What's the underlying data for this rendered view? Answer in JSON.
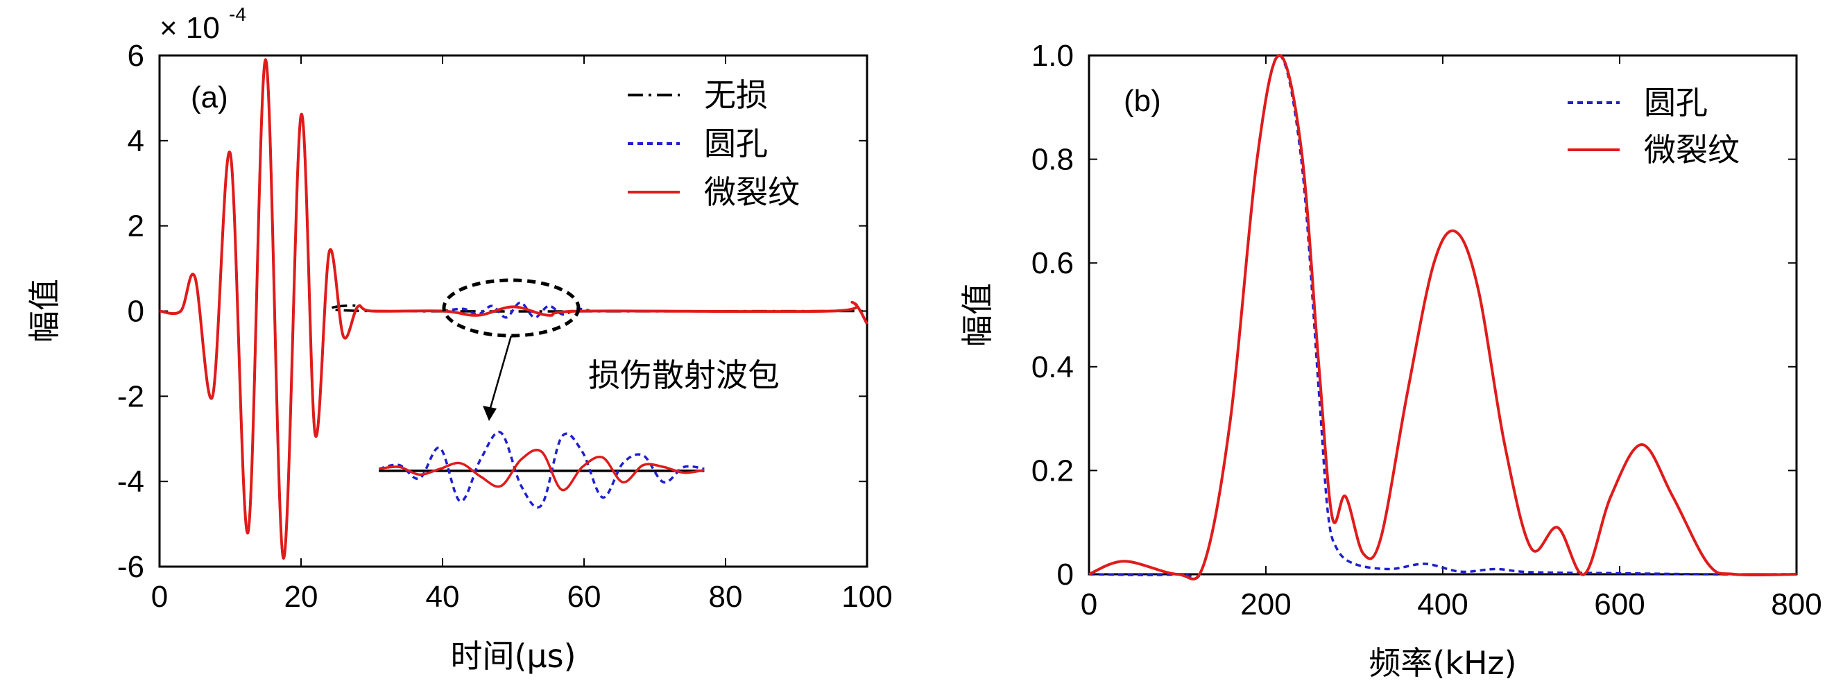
{
  "chart_data": [
    {
      "id": "a",
      "type": "line",
      "panel_label": "(a)",
      "xlabel": "时间(μs)",
      "ylabel": "幅值",
      "scale_note_base": "× 10",
      "scale_note_exp": "-4",
      "xlim": [
        0,
        100
      ],
      "ylim": [
        -6,
        6
      ],
      "xticks": [
        "0",
        "20",
        "40",
        "60",
        "80",
        "100"
      ],
      "yticks": [
        "6",
        "4",
        "2",
        "0",
        "-2",
        "-4",
        "-6"
      ],
      "legend_position": "top-right",
      "annotation": "损伤散射波包",
      "series": [
        {
          "name": "无损",
          "color": "#000000",
          "style": "dash-dot",
          "x": [
            0,
            3,
            5,
            7.5,
            10,
            12.5,
            15,
            17.5,
            20,
            22,
            24,
            26,
            28,
            30,
            100
          ],
          "y": [
            0,
            0,
            0.8,
            -2.0,
            3.7,
            -5.2,
            5.9,
            -5.8,
            4.6,
            -2.9,
            1.4,
            -0.6,
            0.1,
            0,
            0
          ]
        },
        {
          "name": "圆孔",
          "color": "#1f1fd0",
          "style": "dotted",
          "x": [
            40,
            43,
            45,
            47,
            49,
            51,
            53,
            55,
            57,
            59,
            61
          ],
          "y": [
            0,
            0.05,
            -0.08,
            0.12,
            -0.15,
            0.2,
            -0.15,
            0.12,
            -0.08,
            0.05,
            0
          ]
        },
        {
          "name": "微裂纹",
          "color": "#e01b1b",
          "style": "solid",
          "x": [
            0,
            3,
            5,
            7.5,
            10,
            12.5,
            15,
            17.5,
            20,
            22,
            24,
            26,
            28,
            30,
            40,
            45,
            50,
            55,
            60,
            95,
            98,
            100
          ],
          "y": [
            0,
            0,
            0.8,
            -2.0,
            3.7,
            -5.2,
            5.9,
            -5.8,
            4.6,
            -2.9,
            1.4,
            -0.6,
            0.1,
            0,
            0,
            -0.1,
            0.1,
            -0.1,
            0,
            0,
            0.2,
            -0.3
          ]
        }
      ],
      "inset_zoom": {
        "xlim": [
          31,
          77
        ],
        "circle_hole": [
          0.05,
          0.15,
          -0.2,
          0.6,
          -0.8,
          0.3,
          1.0,
          -0.4,
          -0.9,
          0.9,
          0.5,
          -0.7,
          0.2,
          0.4,
          -0.3,
          0.1,
          0.05
        ],
        "micro_crack": [
          0.05,
          0.1,
          -0.1,
          0.05,
          0.2,
          -0.15,
          -0.4,
          0.3,
          0.5,
          -0.5,
          0.1,
          0.35,
          -0.3,
          0.15,
          0.1,
          -0.05,
          0.02
        ]
      }
    },
    {
      "id": "b",
      "type": "line",
      "panel_label": "(b)",
      "xlabel": "频率(kHz)",
      "ylabel": "幅值",
      "xlim": [
        0,
        800
      ],
      "ylim": [
        0,
        1.0
      ],
      "xticks": [
        "0",
        "200",
        "400",
        "600",
        "800"
      ],
      "yticks": [
        "1.0",
        "0.8",
        "0.6",
        "0.4",
        "0.2",
        "0"
      ],
      "legend_position": "top-right",
      "series": [
        {
          "name": "圆孔",
          "color": "#1f1fd0",
          "style": "dotted",
          "x": [
            0,
            100,
            130,
            160,
            190,
            215,
            240,
            260,
            270,
            280,
            300,
            340,
            380,
            420,
            460,
            500,
            600,
            700,
            800
          ],
          "y": [
            0,
            0,
            0.02,
            0.3,
            0.8,
            1.0,
            0.8,
            0.35,
            0.12,
            0.05,
            0.02,
            0.01,
            0.02,
            0.005,
            0.01,
            0.004,
            0.002,
            0,
            0
          ]
        },
        {
          "name": "微裂纹",
          "color": "#e01b1b",
          "style": "solid",
          "x": [
            0,
            40,
            100,
            130,
            160,
            190,
            215,
            240,
            260,
            275,
            290,
            310,
            330,
            360,
            390,
            415,
            440,
            470,
            500,
            530,
            560,
            590,
            625,
            660,
            700,
            730,
            800
          ],
          "y": [
            0,
            0.025,
            0,
            0.02,
            0.3,
            0.8,
            1.0,
            0.82,
            0.4,
            0.11,
            0.15,
            0.04,
            0.07,
            0.35,
            0.6,
            0.66,
            0.55,
            0.25,
            0.05,
            0.09,
            0.0,
            0.15,
            0.25,
            0.15,
            0.02,
            0,
            0
          ]
        }
      ]
    }
  ]
}
